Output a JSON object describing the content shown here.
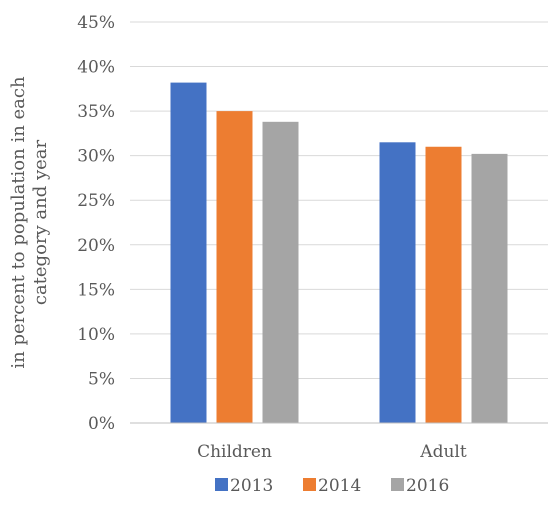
{
  "chart_data": {
    "type": "bar",
    "title": "",
    "xlabel": "",
    "ylabel_lines": [
      "in percent to population in each",
      "category and year"
    ],
    "categories": [
      "Children",
      "Adult"
    ],
    "series": [
      {
        "name": "2013",
        "color": "#4472c4",
        "values": [
          0.382,
          0.315
        ]
      },
      {
        "name": "2014",
        "color": "#ed7d31",
        "values": [
          0.35,
          0.31
        ]
      },
      {
        "name": "2016",
        "color": "#a5a5a5",
        "values": [
          0.338,
          0.302
        ]
      }
    ],
    "ylim": [
      0,
      0.45
    ],
    "yticks": [
      0,
      0.05,
      0.1,
      0.15,
      0.2,
      0.25,
      0.3,
      0.35,
      0.4,
      0.45
    ],
    "ytick_labels": [
      "0%",
      "5%",
      "10%",
      "15%",
      "20%",
      "25%",
      "30%",
      "35%",
      "40%",
      "45%"
    ],
    "grid": true,
    "legend_position": "bottom"
  }
}
